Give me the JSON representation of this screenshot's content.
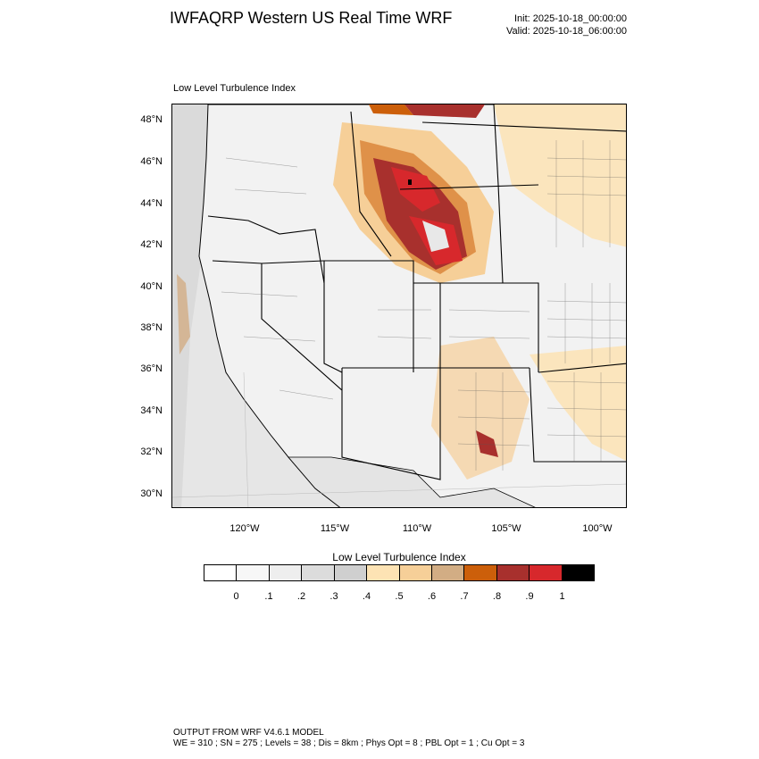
{
  "header": {
    "title": "IWFAQRP Western US Real Time WRF",
    "init": "Init: 2025-10-18_00:00:00",
    "valid": "Valid: 2025-10-18_06:00:00"
  },
  "map": {
    "subtitle": "Low Level Turbulence Index",
    "lat_labels": [
      "48°N",
      "46°N",
      "44°N",
      "42°N",
      "40°N",
      "38°N",
      "36°N",
      "34°N",
      "32°N",
      "30°N"
    ],
    "lon_labels": [
      "120°W",
      "115°W",
      "110°W",
      "105°W",
      "100°W"
    ]
  },
  "legend": {
    "title": "Low Level Turbulence Index",
    "tick_labels": [
      "0",
      ".1",
      ".2",
      ".3",
      ".4",
      ".5",
      ".6",
      ".7",
      ".8",
      ".9",
      "1"
    ],
    "colors": [
      "#ffffff",
      "#f7f7f7",
      "#eeeeee",
      "#dcdcdc",
      "#cfcfcf",
      "#fde3b4",
      "#f6cf98",
      "#d2ad84",
      "#cc5f0a",
      "#a8302d",
      "#d7282c",
      "#000000"
    ]
  },
  "footer": {
    "line1": "OUTPUT FROM WRF V4.6.1 MODEL",
    "line2": "WE = 310 ; SN = 275 ; Levels = 38 ; Dis = 8km ; Phys Opt = 8 ; PBL Opt = 1 ; Cu Opt = 3"
  }
}
